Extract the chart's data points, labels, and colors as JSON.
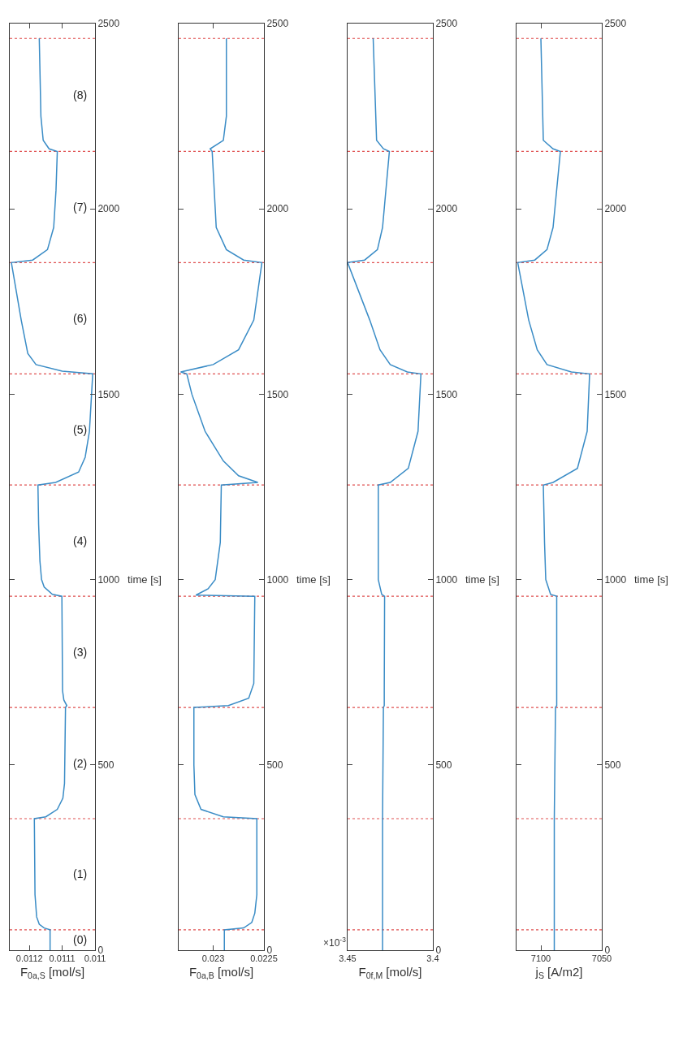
{
  "chart_data": [
    {
      "type": "line",
      "ylabel": "time [s]",
      "xlabel": "F$_{0a,S}$ [mol/s]",
      "ylim": [
        0,
        2500
      ],
      "yticks": [
        0,
        500,
        1000,
        1500,
        2000,
        2500
      ],
      "xlim": [
        0.01126,
        0.011
      ],
      "xticks": [
        0.011,
        0.0111,
        0.0112
      ],
      "series": [
        {
          "color": "#3a8cc6",
          "x": [
            0.011137,
            0.011137,
            0.011155,
            0.01117,
            0.011178,
            0.011183,
            0.011185,
            0.01115,
            0.011115,
            0.011098,
            0.011093,
            0.01109,
            0.011086,
            0.011095,
            0.011099,
            0.011101,
            0.01113,
            0.011155,
            0.011163,
            0.011168,
            0.011172,
            0.011174,
            0.01112,
            0.01105,
            0.01103,
            0.011017,
            0.011007,
            0.0111,
            0.01118,
            0.011205,
            0.011225,
            0.011255,
            0.01119,
            0.011145,
            0.011126,
            0.011119,
            0.011115,
            0.01114,
            0.011158,
            0.011165,
            0.01117
          ],
          "values": [
            0,
            55,
            60,
            70,
            90,
            150,
            355,
            360,
            380,
            410,
            450,
            655,
            660,
            675,
            700,
            955,
            960,
            980,
            1000,
            1050,
            1150,
            1255,
            1262,
            1290,
            1330,
            1400,
            1555,
            1562,
            1580,
            1610,
            1700,
            1855,
            1862,
            1890,
            1950,
            2050,
            2155,
            2162,
            2185,
            2250,
            2460
          ]
        }
      ],
      "ref_lines": [
        {
          "axis": "y",
          "value": 55,
          "color": "#e05050",
          "line_style": "dotted"
        },
        {
          "axis": "y",
          "value": 355,
          "color": "#e05050",
          "line_style": "dotted"
        },
        {
          "axis": "y",
          "value": 655,
          "color": "#e05050",
          "line_style": "dotted"
        },
        {
          "axis": "y",
          "value": 955,
          "color": "#e05050",
          "line_style": "dotted"
        },
        {
          "axis": "y",
          "value": 1255,
          "color": "#e05050",
          "line_style": "dotted"
        },
        {
          "axis": "y",
          "value": 1555,
          "color": "#e05050",
          "line_style": "dotted"
        },
        {
          "axis": "y",
          "value": 1855,
          "color": "#e05050",
          "line_style": "dotted"
        },
        {
          "axis": "y",
          "value": 2155,
          "color": "#e05050",
          "line_style": "dotted"
        },
        {
          "axis": "y",
          "value": 2460,
          "color": "#e05050",
          "line_style": "dotted"
        }
      ],
      "annotations": [
        "(0)",
        "(1)",
        "(2)",
        "(3)",
        "(4)",
        "(5)",
        "(6)",
        "(7)",
        "(8)"
      ]
    },
    {
      "type": "line",
      "ylabel": "time [s]",
      "xlabel": "F$_{0a,B}$ [mol/s]",
      "ylim": [
        0,
        2500
      ],
      "yticks": [
        0,
        500,
        1000,
        1500,
        2000,
        2500
      ],
      "xlim": [
        0.02334,
        0.0225
      ],
      "xticks": [
        0.0225,
        0.023
      ],
      "series": [
        {
          "color": "#3a8cc6",
          "x": [
            0.02289,
            0.02289,
            0.0227,
            0.02262,
            0.02259,
            0.02257,
            0.02257,
            0.0229,
            0.02312,
            0.02318,
            0.02319,
            0.02319,
            0.02285,
            0.02265,
            0.0226,
            0.02259,
            0.02317,
            0.02305,
            0.02298,
            0.02293,
            0.02292,
            0.02256,
            0.02275,
            0.0229,
            0.02308,
            0.02321,
            0.02326,
            0.02332,
            0.023,
            0.02275,
            0.0226,
            0.02252,
            0.0227,
            0.02287,
            0.02297,
            0.02301,
            0.02303,
            0.0229,
            0.02287,
            0.02287
          ],
          "values": [
            0,
            55,
            60,
            75,
            100,
            150,
            355,
            360,
            380,
            420,
            500,
            655,
            660,
            680,
            720,
            955,
            958,
            975,
            1000,
            1100,
            1255,
            1262,
            1280,
            1320,
            1400,
            1500,
            1555,
            1560,
            1580,
            1620,
            1700,
            1855,
            1862,
            1890,
            1950,
            2155,
            2162,
            2185,
            2250,
            2460
          ]
        }
      ],
      "ref_lines": [
        {
          "axis": "y",
          "value": 55,
          "color": "#e05050",
          "line_style": "dotted"
        },
        {
          "axis": "y",
          "value": 355,
          "color": "#e05050",
          "line_style": "dotted"
        },
        {
          "axis": "y",
          "value": 655,
          "color": "#e05050",
          "line_style": "dotted"
        },
        {
          "axis": "y",
          "value": 955,
          "color": "#e05050",
          "line_style": "dotted"
        },
        {
          "axis": "y",
          "value": 1255,
          "color": "#e05050",
          "line_style": "dotted"
        },
        {
          "axis": "y",
          "value": 1555,
          "color": "#e05050",
          "line_style": "dotted"
        },
        {
          "axis": "y",
          "value": 1855,
          "color": "#e05050",
          "line_style": "dotted"
        },
        {
          "axis": "y",
          "value": 2155,
          "color": "#e05050",
          "line_style": "dotted"
        },
        {
          "axis": "y",
          "value": 2460,
          "color": "#e05050",
          "line_style": "dotted"
        }
      ]
    },
    {
      "type": "line",
      "ylabel": "time [s]",
      "xlabel": "F$_{0f,M}$ [mol/s]",
      "ylim": [
        0,
        2500
      ],
      "yticks": [
        0,
        500,
        1000,
        1500,
        2000,
        2500
      ],
      "xlim": [
        3.45,
        3.4
      ],
      "xticks": [
        3.4,
        3.45
      ],
      "series": [
        {
          "color": "#3a8cc6",
          "x": [
            3.4295,
            3.4295,
            3.4295,
            3.429,
            3.4285,
            3.4285,
            3.4283,
            3.43,
            3.432,
            3.432,
            3.432,
            3.425,
            3.4144,
            3.4087,
            3.407,
            3.415,
            3.425,
            3.431,
            3.437,
            3.45,
            3.44,
            3.4325,
            3.4295,
            3.4255,
            3.429,
            3.433,
            3.435
          ],
          "values": [
            0,
            55,
            355,
            655,
            660,
            700,
            955,
            960,
            1000,
            1100,
            1255,
            1262,
            1300,
            1400,
            1555,
            1560,
            1580,
            1620,
            1700,
            1855,
            1862,
            1890,
            1950,
            2155,
            2162,
            2185,
            2460
          ]
        }
      ],
      "ref_lines": [
        {
          "axis": "y",
          "value": 55,
          "color": "#e05050",
          "line_style": "dotted"
        },
        {
          "axis": "y",
          "value": 355,
          "color": "#e05050",
          "line_style": "dotted"
        },
        {
          "axis": "y",
          "value": 655,
          "color": "#e05050",
          "line_style": "dotted"
        },
        {
          "axis": "y",
          "value": 955,
          "color": "#e05050",
          "line_style": "dotted"
        },
        {
          "axis": "y",
          "value": 1255,
          "color": "#e05050",
          "line_style": "dotted"
        },
        {
          "axis": "y",
          "value": 1555,
          "color": "#e05050",
          "line_style": "dotted"
        },
        {
          "axis": "y",
          "value": 1855,
          "color": "#e05050",
          "line_style": "dotted"
        },
        {
          "axis": "y",
          "value": 2155,
          "color": "#e05050",
          "line_style": "dotted"
        },
        {
          "axis": "y",
          "value": 2460,
          "color": "#e05050",
          "line_style": "dotted"
        }
      ],
      "annotations": [
        "×10$^{-3}$"
      ]
    },
    {
      "type": "line",
      "ylabel": "time [s]",
      "xlabel": "j$_{S}$ [A/m2]",
      "ylim": [
        0,
        2500
      ],
      "yticks": [
        0,
        500,
        1000,
        1500,
        2000,
        2500
      ],
      "xlim": [
        7120,
        7050
      ],
      "xticks": [
        7050,
        7100
      ],
      "series": [
        {
          "color": "#3a8cc6",
          "x": [
            7089,
            7089,
            7089,
            7088,
            7087,
            7087,
            7087,
            7092,
            7096,
            7097,
            7098,
            7090,
            7070,
            7062,
            7060,
            7075,
            7095,
            7103,
            7110,
            7119,
            7105,
            7095,
            7090,
            7084,
            7090,
            7098,
            7100
          ],
          "values": [
            0,
            55,
            355,
            655,
            660,
            700,
            955,
            960,
            1000,
            1100,
            1255,
            1262,
            1300,
            1400,
            1555,
            1560,
            1580,
            1620,
            1700,
            1855,
            1862,
            1890,
            1950,
            2155,
            2162,
            2185,
            2460
          ]
        }
      ],
      "ref_lines": [
        {
          "axis": "y",
          "value": 55,
          "color": "#e05050",
          "line_style": "dotted"
        },
        {
          "axis": "y",
          "value": 355,
          "color": "#e05050",
          "line_style": "dotted"
        },
        {
          "axis": "y",
          "value": 655,
          "color": "#e05050",
          "line_style": "dotted"
        },
        {
          "axis": "y",
          "value": 955,
          "color": "#e05050",
          "line_style": "dotted"
        },
        {
          "axis": "y",
          "value": 1255,
          "color": "#e05050",
          "line_style": "dotted"
        },
        {
          "axis": "y",
          "value": 1555,
          "color": "#e05050",
          "line_style": "dotted"
        },
        {
          "axis": "y",
          "value": 1855,
          "color": "#e05050",
          "line_style": "dotted"
        },
        {
          "axis": "y",
          "value": 2155,
          "color": "#e05050",
          "line_style": "dotted"
        },
        {
          "axis": "y",
          "value": 2460,
          "color": "#e05050",
          "line_style": "dotted"
        }
      ]
    }
  ]
}
